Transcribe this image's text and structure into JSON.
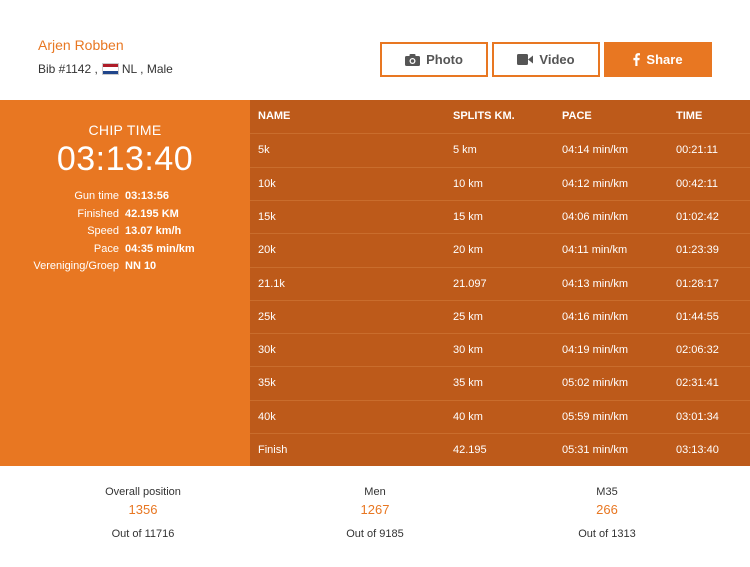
{
  "runner": {
    "name": "Arjen Robben",
    "bib": "Bib #1142 ,",
    "country": "NL",
    "gender": ", Male"
  },
  "actions": {
    "photo_label": "Photo",
    "video_label": "Video",
    "share_label": "Share"
  },
  "colors": {
    "accent": "#e87722",
    "table_bg": "#bd5a1a"
  },
  "chip": {
    "label": "CHIP TIME",
    "time": "03:13:40",
    "stats": [
      {
        "label": "Gun time",
        "value": "03:13:56"
      },
      {
        "label": "Finished",
        "value": "42.195 KM"
      },
      {
        "label": "Speed",
        "value": "13.07 km/h"
      },
      {
        "label": "Pace",
        "value": "04:35 min/km"
      },
      {
        "label": "Vereniging/Groep",
        "value": "NN 10"
      }
    ]
  },
  "splits": {
    "headers": [
      "NAME",
      "SPLITS KM.",
      "PACE",
      "TIME"
    ],
    "rows": [
      [
        "5k",
        "5 km",
        "04:14 min/km",
        "00:21:11"
      ],
      [
        "10k",
        "10 km",
        "04:12 min/km",
        "00:42:11"
      ],
      [
        "15k",
        "15 km",
        "04:06 min/km",
        "01:02:42"
      ],
      [
        "20k",
        "20 km",
        "04:11 min/km",
        "01:23:39"
      ],
      [
        "21.1k",
        "21.097",
        "04:13 min/km",
        "01:28:17"
      ],
      [
        "25k",
        "25 km",
        "04:16 min/km",
        "01:44:55"
      ],
      [
        "30k",
        "30 km",
        "04:19 min/km",
        "02:06:32"
      ],
      [
        "35k",
        "35 km",
        "05:02 min/km",
        "02:31:41"
      ],
      [
        "40k",
        "40 km",
        "05:59 min/km",
        "03:01:34"
      ],
      [
        "Finish",
        "42.195",
        "05:31 min/km",
        "03:13:40"
      ]
    ]
  },
  "positions": [
    {
      "label": "Overall position",
      "value": "1356",
      "out_of": "Out of 11716"
    },
    {
      "label": "Men",
      "value": "1267",
      "out_of": "Out of 9185"
    },
    {
      "label": "M35",
      "value": "266",
      "out_of": "Out of 1313"
    }
  ]
}
